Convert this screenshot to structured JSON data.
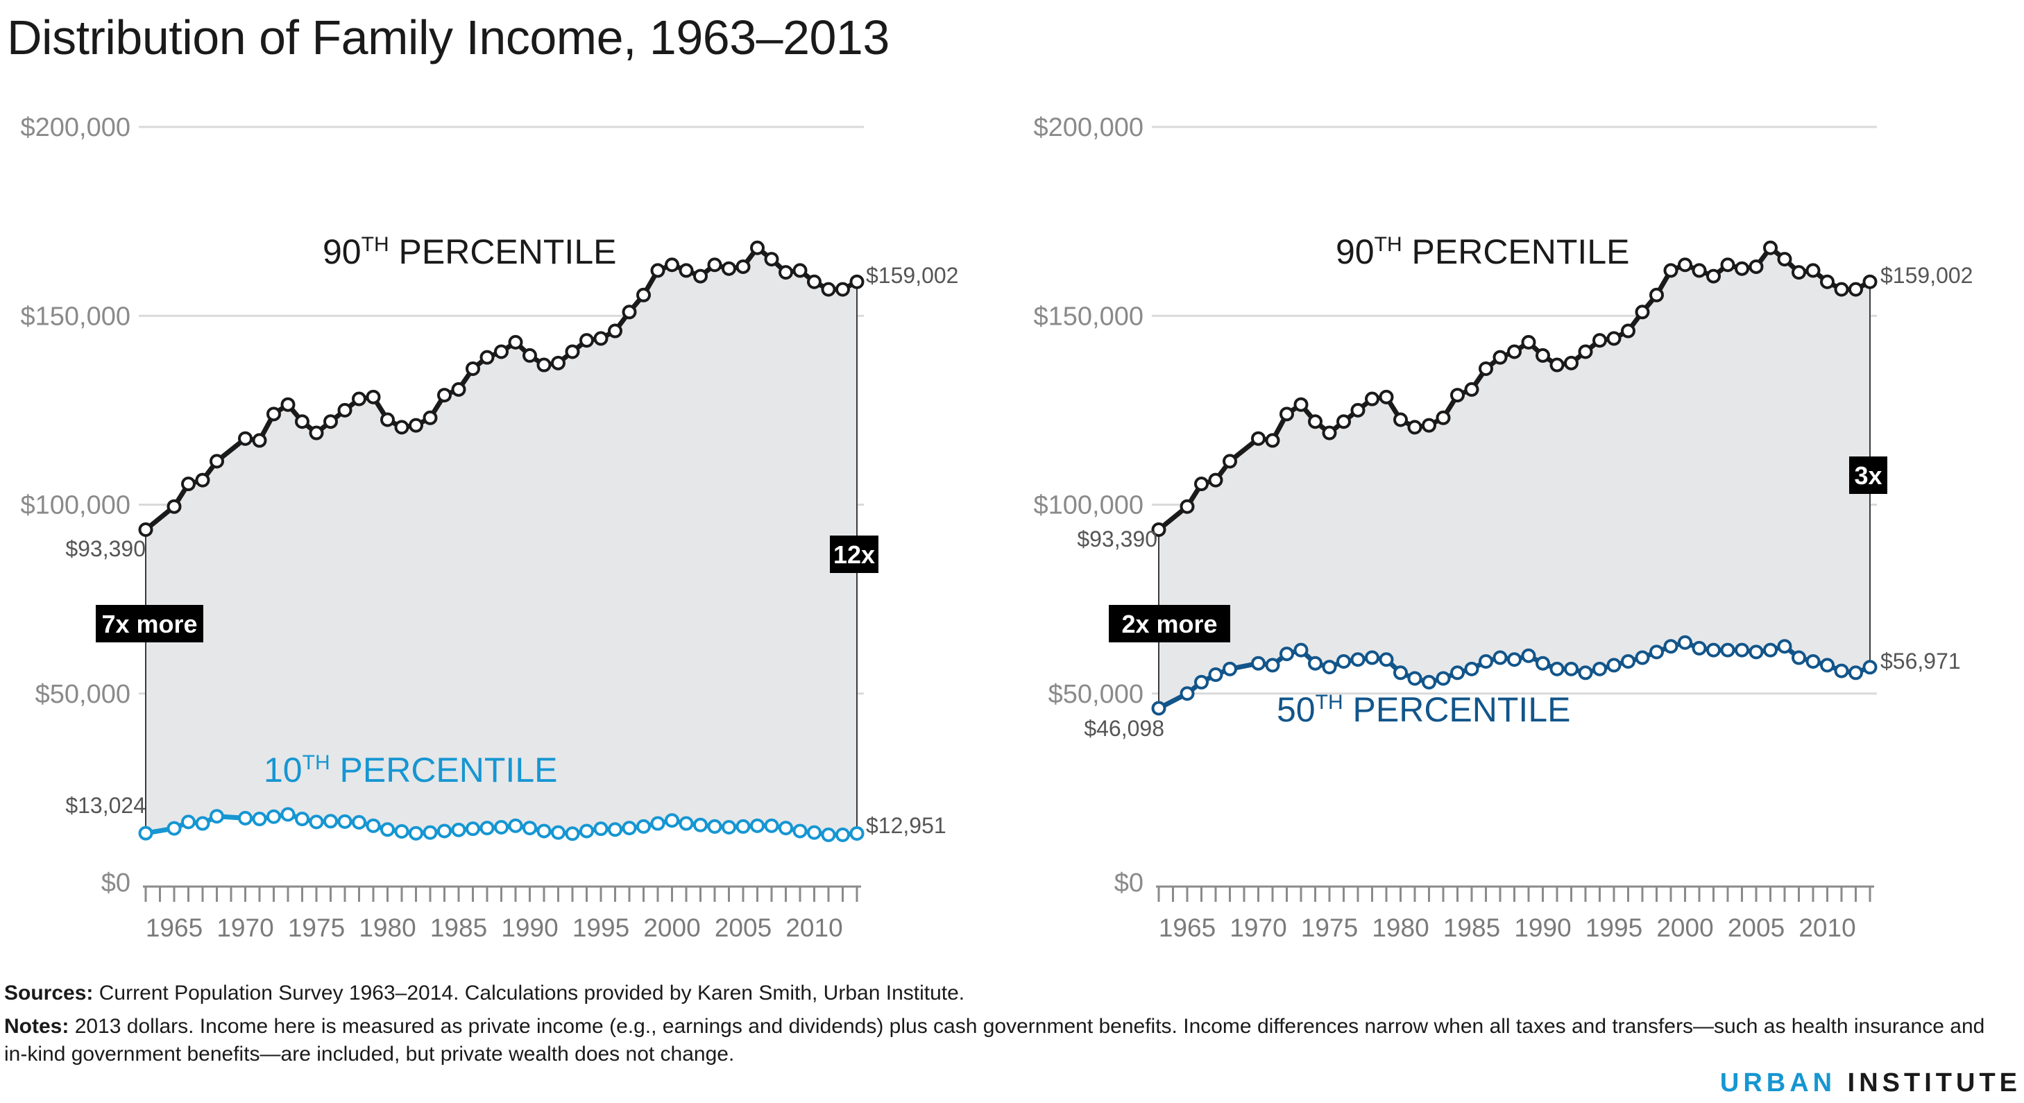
{
  "title": "Distribution of Family Income, 1963–2013",
  "sources": {
    "label": "Sources:",
    "text": "Current Population Survey 1963–2014. Calculations provided by Karen Smith, Urban Institute."
  },
  "notes": {
    "label": "Notes:",
    "text": "2013 dollars. Income here is measured as private income (e.g., earnings and dividends) plus cash government benefits. Income differences narrow when all taxes and transfers—such as health insurance and in-kind government benefits—are included, but private wealth does not change."
  },
  "brand": {
    "part1": "URBAN",
    "part2": "INSTITUTE"
  },
  "colors": {
    "p90": "#1a1a1a",
    "p10": "#1696d2",
    "p50": "#12558a",
    "fill": "#e6e7e9",
    "grid": "#d9d9d9",
    "axis": "#8a8a8a"
  },
  "chart_data": [
    {
      "type": "line",
      "ylim": [
        0,
        200000
      ],
      "yticks": [
        0,
        50000,
        100000,
        150000,
        200000
      ],
      "ytick_labels": [
        "$0",
        "$50,000",
        "$100,000",
        "$150,000",
        "$200,000"
      ],
      "xlim": [
        1963,
        2013
      ],
      "xtick_labels": [
        "1965",
        "1970",
        "1975",
        "1980",
        "1985",
        "1990",
        "1995",
        "2000",
        "2005",
        "2010"
      ],
      "shaded_between_series": true,
      "series": [
        {
          "name": "90TH PERCENTILE",
          "label_main": "90",
          "label_sup": "TH",
          "label_rest": " PERCENTILE",
          "color": "#1a1a1a",
          "x": [
            1963,
            1965,
            1966,
            1967,
            1968,
            1970,
            1971,
            1972,
            1973,
            1974,
            1975,
            1976,
            1977,
            1978,
            1979,
            1980,
            1981,
            1982,
            1983,
            1984,
            1985,
            1986,
            1987,
            1988,
            1989,
            1990,
            1991,
            1992,
            1993,
            1994,
            1995,
            1996,
            1997,
            1998,
            1999,
            2000,
            2001,
            2002,
            2003,
            2004,
            2005,
            2006,
            2007,
            2008,
            2009,
            2010,
            2011,
            2012,
            2013
          ],
          "y": [
            93390,
            99500,
            105500,
            106500,
            111500,
            117500,
            117000,
            124000,
            126500,
            122000,
            119000,
            122000,
            125000,
            128000,
            128500,
            122500,
            120500,
            121000,
            123000,
            129000,
            130500,
            136000,
            139000,
            140500,
            143000,
            139500,
            137000,
            137500,
            140500,
            143500,
            144000,
            146000,
            151000,
            155500,
            162000,
            163500,
            162000,
            160500,
            163500,
            162500,
            163000,
            168000,
            165000,
            161500,
            162000,
            159000,
            157000,
            157000,
            159002
          ],
          "start_label": "$93,390",
          "end_label": "$159,002"
        },
        {
          "name": "10TH PERCENTILE",
          "label_main": "10",
          "label_sup": "TH",
          "label_rest": " PERCENTILE",
          "color": "#1696d2",
          "x": [
            1963,
            1965,
            1966,
            1967,
            1968,
            1970,
            1971,
            1972,
            1973,
            1974,
            1975,
            1976,
            1977,
            1978,
            1979,
            1980,
            1981,
            1982,
            1983,
            1984,
            1985,
            1986,
            1987,
            1988,
            1989,
            1990,
            1991,
            1992,
            1993,
            1994,
            1995,
            1996,
            1997,
            1998,
            1999,
            2000,
            2001,
            2002,
            2003,
            2004,
            2005,
            2006,
            2007,
            2008,
            2009,
            2010,
            2011,
            2012,
            2013
          ],
          "y": [
            13024,
            14300,
            16000,
            15600,
            17500,
            17000,
            16800,
            17400,
            18000,
            16800,
            16000,
            16200,
            16100,
            15900,
            15000,
            14000,
            13500,
            13000,
            13200,
            13600,
            13900,
            14200,
            14400,
            14600,
            15000,
            14400,
            13600,
            13200,
            12900,
            13600,
            14200,
            14000,
            14400,
            14800,
            15600,
            16400,
            15600,
            15200,
            14800,
            14600,
            14800,
            15000,
            15000,
            14400,
            13600,
            13200,
            12600,
            12600,
            12951
          ],
          "start_label": "$13,024",
          "end_label": "$12,951"
        }
      ],
      "annotations": [
        "7x more",
        "12x"
      ]
    },
    {
      "type": "line",
      "ylim": [
        0,
        200000
      ],
      "yticks": [
        0,
        50000,
        100000,
        150000,
        200000
      ],
      "ytick_labels": [
        "$0",
        "$50,000",
        "$100,000",
        "$150,000",
        "$200,000"
      ],
      "xlim": [
        1963,
        2013
      ],
      "xtick_labels": [
        "1965",
        "1970",
        "1975",
        "1980",
        "1985",
        "1990",
        "1995",
        "2000",
        "2005",
        "2010"
      ],
      "shaded_between_series": true,
      "series": [
        {
          "name": "90TH PERCENTILE",
          "label_main": "90",
          "label_sup": "TH",
          "label_rest": " PERCENTILE",
          "color": "#1a1a1a",
          "x": [
            1963,
            1965,
            1966,
            1967,
            1968,
            1970,
            1971,
            1972,
            1973,
            1974,
            1975,
            1976,
            1977,
            1978,
            1979,
            1980,
            1981,
            1982,
            1983,
            1984,
            1985,
            1986,
            1987,
            1988,
            1989,
            1990,
            1991,
            1992,
            1993,
            1994,
            1995,
            1996,
            1997,
            1998,
            1999,
            2000,
            2001,
            2002,
            2003,
            2004,
            2005,
            2006,
            2007,
            2008,
            2009,
            2010,
            2011,
            2012,
            2013
          ],
          "y": [
            93390,
            99500,
            105500,
            106500,
            111500,
            117500,
            117000,
            124000,
            126500,
            122000,
            119000,
            122000,
            125000,
            128000,
            128500,
            122500,
            120500,
            121000,
            123000,
            129000,
            130500,
            136000,
            139000,
            140500,
            143000,
            139500,
            137000,
            137500,
            140500,
            143500,
            144000,
            146000,
            151000,
            155500,
            162000,
            163500,
            162000,
            160500,
            163500,
            162500,
            163000,
            168000,
            165000,
            161500,
            162000,
            159000,
            157000,
            157000,
            159002
          ],
          "start_label": "$93,390",
          "end_label": "$159,002"
        },
        {
          "name": "50TH PERCENTILE",
          "label_main": "50",
          "label_sup": "TH",
          "label_rest": " PERCENTILE",
          "color": "#12558a",
          "x": [
            1963,
            1965,
            1966,
            1967,
            1968,
            1970,
            1971,
            1972,
            1973,
            1974,
            1975,
            1976,
            1977,
            1978,
            1979,
            1980,
            1981,
            1982,
            1983,
            1984,
            1985,
            1986,
            1987,
            1988,
            1989,
            1990,
            1991,
            1992,
            1993,
            1994,
            1995,
            1996,
            1997,
            1998,
            1999,
            2000,
            2001,
            2002,
            2003,
            2004,
            2005,
            2006,
            2007,
            2008,
            2009,
            2010,
            2011,
            2012,
            2013
          ],
          "y": [
            46098,
            50000,
            53000,
            55000,
            56500,
            58000,
            57500,
            60500,
            61500,
            58000,
            57000,
            58500,
            59000,
            59500,
            59000,
            55500,
            54000,
            53000,
            54000,
            55500,
            56500,
            58500,
            59500,
            59000,
            60000,
            58000,
            56500,
            56500,
            55500,
            56500,
            57500,
            58500,
            59500,
            61000,
            62500,
            63500,
            62000,
            61500,
            61500,
            61500,
            61000,
            61500,
            62500,
            59500,
            58500,
            57500,
            56000,
            55500,
            56971
          ],
          "start_label": "$46,098",
          "end_label": "$56,971"
        }
      ],
      "annotations": [
        "2x more",
        "3x"
      ]
    }
  ]
}
